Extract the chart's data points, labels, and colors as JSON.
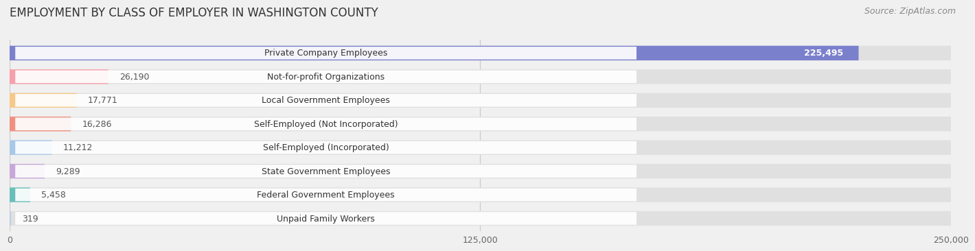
{
  "title": "EMPLOYMENT BY CLASS OF EMPLOYER IN WASHINGTON COUNTY",
  "source": "Source: ZipAtlas.com",
  "categories": [
    "Private Company Employees",
    "Not-for-profit Organizations",
    "Local Government Employees",
    "Self-Employed (Not Incorporated)",
    "Self-Employed (Incorporated)",
    "State Government Employees",
    "Federal Government Employees",
    "Unpaid Family Workers"
  ],
  "values": [
    225495,
    26190,
    17771,
    16286,
    11212,
    9289,
    5458,
    319
  ],
  "bar_colors": [
    "#7b80cc",
    "#f5a0aa",
    "#f5c98a",
    "#f09080",
    "#a8c8e8",
    "#c8a8d8",
    "#68bfb8",
    "#b8c8e8"
  ],
  "value_colors": [
    "#ffffff",
    "#555555",
    "#555555",
    "#555555",
    "#555555",
    "#555555",
    "#555555",
    "#555555"
  ],
  "xlim": [
    0,
    250000
  ],
  "xticks": [
    0,
    125000,
    250000
  ],
  "xticklabels": [
    "0",
    "125,000",
    "250,000"
  ],
  "background_color": "#f0f0f0",
  "bar_bg_color": "#e0e0e0",
  "label_bg_color": "#ffffff",
  "title_fontsize": 12,
  "source_fontsize": 9,
  "label_fontsize": 9,
  "value_fontsize": 9
}
